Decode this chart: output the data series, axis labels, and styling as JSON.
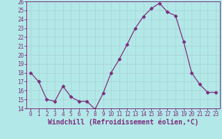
{
  "xlabel": "Windchill (Refroidissement éolien,°C)",
  "x": [
    0,
    1,
    2,
    3,
    4,
    5,
    6,
    7,
    8,
    9,
    10,
    11,
    12,
    13,
    14,
    15,
    16,
    17,
    18,
    19,
    20,
    21,
    22,
    23
  ],
  "y": [
    18,
    17,
    15,
    14.8,
    16.5,
    15.3,
    14.8,
    14.8,
    13.9,
    15.7,
    18,
    19.5,
    21.2,
    23,
    24.3,
    25.2,
    25.8,
    24.8,
    24.4,
    21.5,
    18,
    16.7,
    15.8,
    15.8
  ],
  "line_color": "#7b2d7b",
  "marker": "D",
  "marker_size": 2.5,
  "bg_color": "#b3e8e8",
  "grid_color": "#aad4d4",
  "ylim": [
    14,
    26
  ],
  "yticks": [
    14,
    15,
    16,
    17,
    18,
    19,
    20,
    21,
    22,
    23,
    24,
    25,
    26
  ],
  "xticks": [
    0,
    1,
    2,
    3,
    4,
    5,
    6,
    7,
    8,
    9,
    10,
    11,
    12,
    13,
    14,
    15,
    16,
    17,
    18,
    19,
    20,
    21,
    22,
    23
  ],
  "tick_label_fontsize": 5.5,
  "xlabel_fontsize": 7.0,
  "axis_color": "#7b2d7b"
}
